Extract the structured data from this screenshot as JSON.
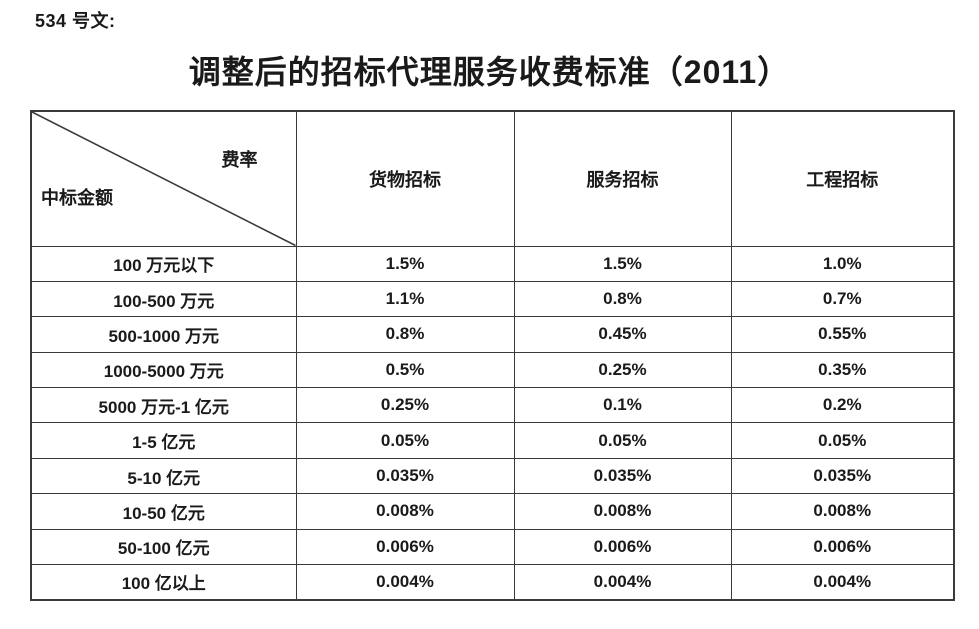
{
  "document": {
    "doc_number": "534 号文:",
    "title": "调整后的招标代理服务收费标准（2011）"
  },
  "table": {
    "corner": {
      "rate_label": "费率",
      "amount_label": "中标金额"
    },
    "column_headers": [
      "货物招标",
      "服务招标",
      "工程招标"
    ],
    "rows": [
      {
        "amount_range": "100 万元以下",
        "goods": "1.5%",
        "services": "1.5%",
        "engineering": "1.0%"
      },
      {
        "amount_range": "100-500 万元",
        "goods": "1.1%",
        "services": "0.8%",
        "engineering": "0.7%"
      },
      {
        "amount_range": "500-1000 万元",
        "goods": "0.8%",
        "services": "0.45%",
        "engineering": "0.55%"
      },
      {
        "amount_range": "1000-5000 万元",
        "goods": "0.5%",
        "services": "0.25%",
        "engineering": "0.35%"
      },
      {
        "amount_range": "5000 万元-1 亿元",
        "goods": "0.25%",
        "services": "0.1%",
        "engineering": "0.2%"
      },
      {
        "amount_range": "1-5 亿元",
        "goods": "0.05%",
        "services": "0.05%",
        "engineering": "0.05%"
      },
      {
        "amount_range": "5-10 亿元",
        "goods": "0.035%",
        "services": "0.035%",
        "engineering": "0.035%"
      },
      {
        "amount_range": "10-50 亿元",
        "goods": "0.008%",
        "services": "0.008%",
        "engineering": "0.008%"
      },
      {
        "amount_range": "50-100 亿元",
        "goods": "0.006%",
        "services": "0.006%",
        "engineering": "0.006%"
      },
      {
        "amount_range": "100 亿以上",
        "goods": "0.004%",
        "services": "0.004%",
        "engineering": "0.004%"
      }
    ]
  },
  "colors": {
    "text": "#1a1a1a",
    "border": "#3a3a3a",
    "background": "#ffffff"
  }
}
